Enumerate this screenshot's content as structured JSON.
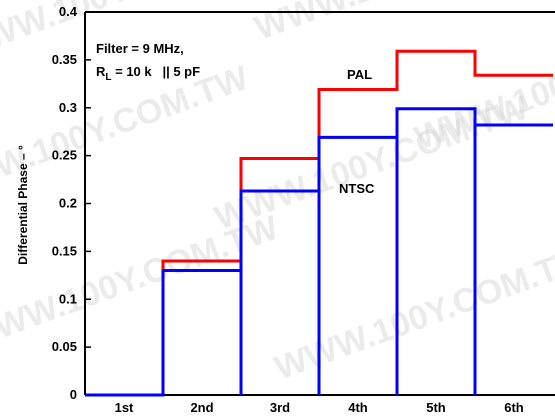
{
  "chart_data": {
    "type": "line",
    "step": true,
    "categories": [
      "1st",
      "2nd",
      "3rd",
      "4th",
      "5th",
      "6th"
    ],
    "ylabel": "Differential Phase – °",
    "ylim": [
      0,
      0.4
    ],
    "yticks": [
      0,
      0.05,
      0.1,
      0.15,
      0.2,
      0.25,
      0.3,
      0.35,
      0.4
    ],
    "grid": false,
    "series": [
      {
        "name": "PAL",
        "color": "#ff0000",
        "values": [
          0.0,
          0.14,
          0.247,
          0.319,
          0.359,
          0.334
        ]
      },
      {
        "name": "NTSC",
        "color": "#0000ff",
        "values": [
          0.0,
          0.13,
          0.213,
          0.269,
          0.299,
          0.282
        ]
      }
    ],
    "annotation": {
      "line1": "Filter = 9 MHz,",
      "line2_prefix": "R",
      "line2_sub": "L",
      "line2_rest": " = 10 k   || 5 pF"
    },
    "watermark": "WWW.100Y.COM.TW"
  }
}
